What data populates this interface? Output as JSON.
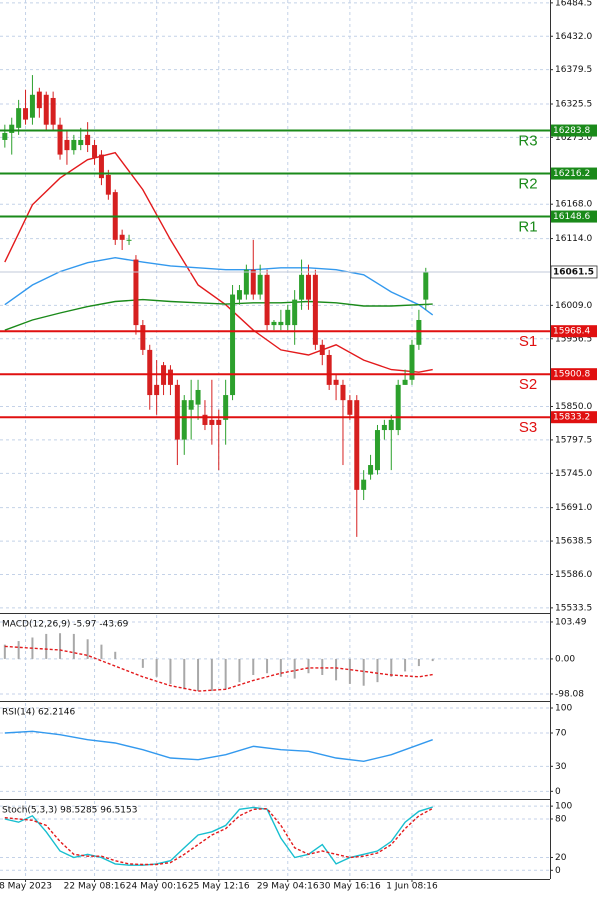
{
  "chart_data": [
    {
      "type": "candlestick",
      "open": [
        16269,
        16280,
        16288,
        16319,
        16304,
        16345,
        16340,
        16335,
        16293,
        16269,
        16253,
        16261,
        16277,
        16261,
        16246,
        16214,
        16187,
        16120,
        16112,
        16081,
        15978,
        15939,
        15884,
        15915,
        15908,
        15884,
        15798,
        15845,
        15853,
        15837,
        15829,
        15829,
        15829,
        15868,
        16018,
        16026,
        16065,
        16026,
        16057,
        15978,
        15978,
        15978,
        15978,
        16018,
        16057,
        16057,
        15947,
        15931,
        15892,
        15884,
        15860,
        15860,
        15719,
        15743,
        15750,
        15813,
        15813,
        15813,
        15884,
        15892,
        15947,
        16018
      ],
      "high": [
        16293,
        16304,
        16332,
        16348,
        16371,
        16351,
        16345,
        16345,
        16304,
        16285,
        16277,
        16288,
        16297,
        16269,
        16253,
        16222,
        16191,
        16128,
        16120,
        16088,
        15986,
        15947,
        15923,
        15920,
        15915,
        15892,
        15868,
        15892,
        15892,
        15860,
        15892,
        15845,
        15892,
        16041,
        16041,
        16073,
        16112,
        16073,
        16065,
        15986,
        16002,
        16010,
        16033,
        16081,
        16073,
        16065,
        15955,
        15939,
        15900,
        15892,
        15868,
        15868,
        15750,
        15774,
        15821,
        15829,
        15837,
        15892,
        15908,
        15955,
        16002,
        16068
      ],
      "low": [
        16257,
        16246,
        16277,
        16293,
        16293,
        16304,
        16285,
        16285,
        16238,
        16230,
        16246,
        16253,
        16250,
        16230,
        16198,
        16175,
        16104,
        16096,
        16104,
        15963,
        15931,
        15845,
        15837,
        15868,
        15868,
        15758,
        15774,
        15798,
        15829,
        15813,
        15790,
        15750,
        15790,
        15860,
        16010,
        16018,
        16018,
        16018,
        15970,
        15970,
        15970,
        15970,
        15947,
        16002,
        16002,
        15939,
        15915,
        15876,
        15860,
        15758,
        15829,
        15645,
        15703,
        15735,
        15743,
        15798,
        15750,
        15805,
        15884,
        15884,
        15939,
        16002
      ],
      "close": [
        16280,
        16293,
        16319,
        16301,
        16340,
        16319,
        16293,
        16293,
        16246,
        16253,
        16269,
        16269,
        16261,
        16241,
        16209,
        16183,
        16112,
        16112,
        16112,
        15978,
        15939,
        15868,
        15868,
        15884,
        15884,
        15798,
        15860,
        15860,
        15876,
        15821,
        15821,
        15821,
        15868,
        16026,
        16033,
        16065,
        16026,
        16057,
        15978,
        15983,
        15983,
        16002,
        16018,
        16057,
        16018,
        15947,
        15931,
        15884,
        15884,
        15860,
        15837,
        15719,
        15735,
        15758,
        15813,
        15821,
        15829,
        15884,
        15892,
        15947,
        15986,
        16061.5
      ],
      "up_color": "#2ca02c",
      "down_color": "#d62020",
      "ylim": [
        15527,
        16489
      ],
      "yticks": [
        16484.5,
        {
          "value": 16432,
          "label": "16432.0"
        },
        16379.5,
        16325.5,
        {
          "value": 16273,
          "label": "16273.0"
        },
        {
          "value": 16168,
          "label": "16168.0"
        },
        {
          "value": 16114,
          "label": "16114.0"
        },
        {
          "value": 16009,
          "label": "16009.0"
        },
        15956.5,
        {
          "value": 15850,
          "label": "15850.0"
        },
        15797.5,
        {
          "value": 15745,
          "label": "15745.0"
        },
        {
          "value": 15691,
          "label": "15691.0"
        },
        15638.5,
        {
          "value": 15586,
          "label": "15586.0"
        },
        15533.5
      ],
      "grid": true,
      "overlays": [
        {
          "color": "#e31a1c",
          "x": [
            0,
            4,
            8,
            12,
            16,
            20,
            24,
            28,
            32,
            36,
            40,
            44,
            48,
            52,
            56,
            60,
            62
          ],
          "values": [
            16077,
            16167,
            16209,
            16238,
            16249,
            16191,
            16112,
            16041,
            16010,
            15970,
            15939,
            15931,
            15947,
            15923,
            15908,
            15904,
            15908
          ]
        },
        {
          "color": "#3399ee",
          "x": [
            0,
            4,
            8,
            12,
            16,
            20,
            24,
            28,
            32,
            36,
            40,
            44,
            48,
            52,
            56,
            60,
            62
          ],
          "values": [
            16010,
            16041,
            16062,
            16076,
            16084,
            16077,
            16071,
            16068,
            16065,
            16065,
            16068,
            16068,
            16065,
            16057,
            16030,
            16010,
            15994
          ]
        },
        {
          "color": "#1a8a1a",
          "x": [
            0,
            4,
            8,
            12,
            16,
            20,
            24,
            28,
            32,
            36,
            40,
            44,
            48,
            52,
            56,
            60,
            62
          ],
          "values": [
            15970,
            15986,
            15997,
            16007,
            16015,
            16018,
            16015,
            16013,
            16011,
            16013,
            16013,
            16015,
            16013,
            16008,
            16008,
            16010,
            16011
          ]
        }
      ],
      "levels": [
        {
          "name": "R3",
          "value": 16283.8,
          "color": "#1a8a1a"
        },
        {
          "name": "R2",
          "value": 16216.2,
          "color": "#1a8a1a"
        },
        {
          "name": "R1",
          "value": 16148.6,
          "color": "#1a8a1a"
        },
        {
          "name": "S1",
          "value": 15968.4,
          "color": "#e01010"
        },
        {
          "name": "S2",
          "value": 15900.8,
          "color": "#e01010"
        },
        {
          "name": "S3",
          "value": 15833.2,
          "color": "#e01010"
        }
      ],
      "last": {
        "value": 16061.5
      }
    },
    {
      "type": "macd",
      "title": "MACD(12,26,9) -5.97 -43.69",
      "ylim": [
        -115,
        123
      ],
      "yticks": [
        103.49,
        {
          "value": 0,
          "label": "0.00"
        },
        -98.08
      ],
      "histogram": {
        "color": "#a8a8a8",
        "x": [
          0,
          2,
          4,
          6,
          8,
          10,
          12,
          14,
          16,
          18,
          20,
          22,
          24,
          26,
          28,
          30,
          32,
          34,
          36,
          38,
          40,
          42,
          44,
          46,
          48,
          50,
          52,
          54,
          56,
          58,
          60,
          62
        ],
        "values": [
          40,
          50,
          60,
          70,
          72,
          70,
          55,
          40,
          20,
          0,
          -25,
          -50,
          -70,
          -85,
          -90,
          -90,
          -85,
          -65,
          -45,
          -40,
          -50,
          -55,
          -40,
          -45,
          -60,
          -70,
          -75,
          -65,
          -50,
          -35,
          -20,
          -6
        ]
      },
      "signal": {
        "color": "#e31a1c",
        "x": [
          0,
          4,
          8,
          12,
          16,
          20,
          24,
          28,
          32,
          36,
          40,
          44,
          48,
          52,
          56,
          60,
          62
        ],
        "values": [
          35,
          30,
          25,
          10,
          -20,
          -50,
          -75,
          -90,
          -85,
          -60,
          -40,
          -25,
          -25,
          -35,
          -45,
          -50,
          -44
        ]
      }
    },
    {
      "type": "rsi",
      "title": "RSI(14) 62.2146",
      "ylim": [
        -8,
        106
      ],
      "yticks": [
        100,
        70,
        30,
        0
      ],
      "line": {
        "color": "#3399ee",
        "x": [
          0,
          4,
          8,
          12,
          16,
          20,
          24,
          28,
          32,
          36,
          40,
          44,
          48,
          52,
          56,
          60,
          62
        ],
        "values": [
          70,
          72,
          68,
          62,
          58,
          50,
          40,
          38,
          44,
          54,
          50,
          48,
          40,
          36,
          44,
          56,
          62
        ]
      }
    },
    {
      "type": "stoch",
      "title": "Stoch(5,3,3) 98.5285 96.5153",
      "ylim": [
        -12,
        108
      ],
      "yticks": [
        100,
        80,
        20,
        0
      ],
      "k": {
        "color": "#17becf",
        "x": [
          0,
          2,
          4,
          6,
          8,
          10,
          12,
          14,
          16,
          18,
          20,
          22,
          24,
          26,
          28,
          30,
          32,
          34,
          36,
          38,
          40,
          42,
          44,
          46,
          48,
          50,
          52,
          54,
          56,
          58,
          60,
          62
        ],
        "values": [
          80,
          75,
          85,
          60,
          30,
          20,
          25,
          20,
          10,
          8,
          8,
          10,
          15,
          35,
          55,
          60,
          70,
          95,
          98,
          95,
          50,
          20,
          25,
          40,
          10,
          20,
          25,
          30,
          45,
          75,
          92,
          98.5
        ]
      },
      "d": {
        "color": "#e31a1c",
        "x": [
          0,
          2,
          4,
          6,
          8,
          10,
          12,
          14,
          16,
          18,
          20,
          22,
          24,
          26,
          28,
          30,
          32,
          34,
          36,
          38,
          40,
          42,
          44,
          46,
          48,
          50,
          52,
          54,
          56,
          58,
          60,
          62
        ],
        "values": [
          82,
          80,
          78,
          70,
          45,
          25,
          22,
          22,
          15,
          10,
          9,
          9,
          12,
          25,
          40,
          55,
          65,
          85,
          95,
          96,
          70,
          35,
          25,
          30,
          25,
          20,
          22,
          27,
          40,
          65,
          85,
          96.5
        ]
      },
      "xlim": [
        -0.7,
        79
      ],
      "xticks": [
        {
          "value": 3,
          "label": "8 May 2023"
        },
        {
          "value": 13,
          "label": "22 May 08:16"
        },
        {
          "value": 22,
          "label": "24 May 00:16"
        },
        {
          "value": 31,
          "label": "25 May 12:16"
        },
        {
          "value": 41,
          "label": "29 May 04:16"
        },
        {
          "value": 50,
          "label": "30 May 16:16"
        },
        {
          "value": 59,
          "label": "1 Jun 08:16"
        }
      ]
    }
  ]
}
